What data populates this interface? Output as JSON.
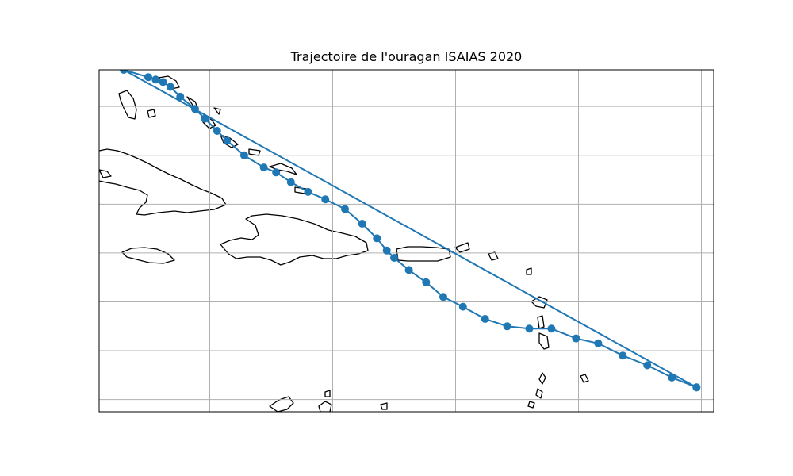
{
  "title": "Trajectoire de l'ouragan ISAIAS 2020",
  "colors": {
    "track": "#1f77b4",
    "grid": "#b0b0b0",
    "coastline": "#000000",
    "frame": "#000000",
    "background": "#ffffff"
  },
  "chart_data": {
    "type": "line",
    "projection": "PlateCarree",
    "extent_lon": [
      -82.5,
      -57.5
    ],
    "extent_lat": [
      11.5,
      25.5
    ],
    "grid": true,
    "grid_lons": [
      -78,
      -73,
      -68,
      -63,
      -58
    ],
    "grid_lats": [
      12,
      14,
      16,
      18,
      20,
      22,
      24
    ],
    "tick_labels_shown": false,
    "series": [
      {
        "values": [
          [
            -58.2,
            12.5
          ],
          [
            -59.2,
            12.9
          ],
          [
            -60.2,
            13.4
          ],
          [
            -61.2,
            13.8
          ],
          [
            -62.2,
            14.3
          ],
          [
            -63.1,
            14.5
          ],
          [
            -64.1,
            14.9
          ],
          [
            -65.0,
            14.9
          ],
          [
            -65.9,
            15.0
          ],
          [
            -66.8,
            15.3
          ],
          [
            -67.7,
            15.8
          ],
          [
            -68.5,
            16.2
          ],
          [
            -69.2,
            16.8
          ],
          [
            -69.9,
            17.3
          ],
          [
            -70.5,
            17.8
          ],
          [
            -70.8,
            18.1
          ],
          [
            -71.2,
            18.6
          ],
          [
            -71.8,
            19.2
          ],
          [
            -72.5,
            19.8
          ],
          [
            -73.3,
            20.2
          ],
          [
            -74.0,
            20.5
          ],
          [
            -74.7,
            20.9
          ],
          [
            -75.3,
            21.3
          ],
          [
            -75.8,
            21.5
          ],
          [
            -76.6,
            22.0
          ],
          [
            -77.3,
            22.6
          ],
          [
            -77.7,
            23.0
          ],
          [
            -78.2,
            23.5
          ],
          [
            -78.6,
            23.9
          ],
          [
            -79.2,
            24.4
          ],
          [
            -79.6,
            24.8
          ],
          [
            -79.9,
            25.0
          ],
          [
            -80.2,
            25.1
          ],
          [
            -80.5,
            25.2
          ],
          [
            -81.5,
            25.5
          ],
          [
            -58.2,
            12.5
          ]
        ]
      }
    ]
  }
}
